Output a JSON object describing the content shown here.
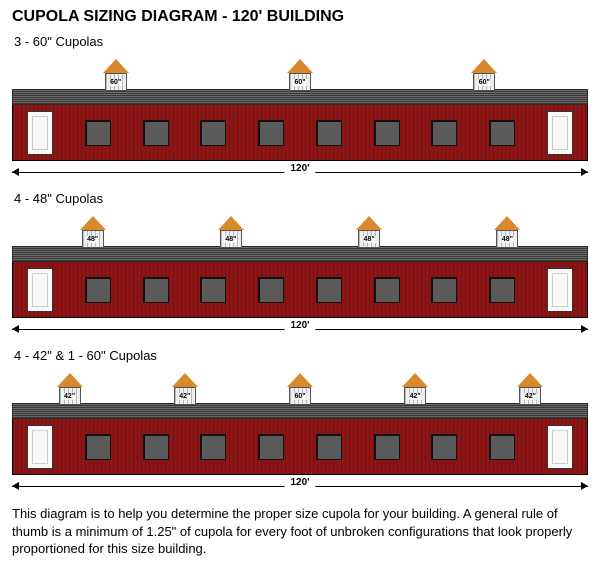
{
  "title": "CUPOLA SIZING DIAGRAM - 120' BUILDING",
  "building_length_ft": "120'",
  "colors": {
    "wall": "#8c1515",
    "roof": "#5a5a5a",
    "cupola_roof": "#d88a2a",
    "cupola_base": "#efefef",
    "door": "#f8f8f8",
    "background": "#ffffff",
    "text": "#000000"
  },
  "wall_items": [
    {
      "type": "door"
    },
    {
      "type": "win"
    },
    {
      "type": "win"
    },
    {
      "type": "win"
    },
    {
      "type": "win"
    },
    {
      "type": "win"
    },
    {
      "type": "win"
    },
    {
      "type": "win"
    },
    {
      "type": "win"
    },
    {
      "type": "door"
    }
  ],
  "options": [
    {
      "label": "3 - 60\" Cupolas",
      "cupolas": [
        {
          "left_pct": 18,
          "size_label": "60\""
        },
        {
          "left_pct": 50,
          "size_label": "60\""
        },
        {
          "left_pct": 82,
          "size_label": "60\""
        }
      ]
    },
    {
      "label": "4 - 48\" Cupolas",
      "cupolas": [
        {
          "left_pct": 14,
          "size_label": "48\""
        },
        {
          "left_pct": 38,
          "size_label": "48\""
        },
        {
          "left_pct": 62,
          "size_label": "48\""
        },
        {
          "left_pct": 86,
          "size_label": "48\""
        }
      ]
    },
    {
      "label": "4 - 42\" & 1 - 60\" Cupolas",
      "cupolas": [
        {
          "left_pct": 10,
          "size_label": "42\""
        },
        {
          "left_pct": 30,
          "size_label": "42\""
        },
        {
          "left_pct": 50,
          "size_label": "60\""
        },
        {
          "left_pct": 70,
          "size_label": "42\""
        },
        {
          "left_pct": 90,
          "size_label": "42\""
        }
      ]
    }
  ],
  "footer_text": "This diagram is to help you determine the proper size cupola for your building. A general rule of thumb is a minimum of 1.25\" of cupola for every foot of unbroken configurations that look properly proportioned for this size building."
}
